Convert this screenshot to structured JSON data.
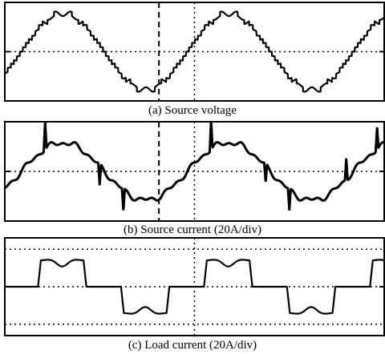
{
  "captions": {
    "a": "(a) Source voltage",
    "b": "(b) Source current (20A/div)",
    "c": "(c) Load current (20A/div)"
  },
  "colors": {
    "trace": "#000000",
    "grid": "#000000",
    "frame": "#000000"
  },
  "chart_data": [
    {
      "type": "line",
      "title": "(a) Source voltage",
      "xlim": [
        0,
        1.6
      ],
      "ylim": [
        -1.3,
        1.3
      ],
      "grid_lines_y": [
        0
      ],
      "grid_lines_x": [
        0.8
      ],
      "dashed_marker_x": 0.65,
      "waveform": {
        "fundamental_amplitude": 1.0,
        "fundamental_cycles_per_unit": 1.4286,
        "phase_start": 0.07,
        "ripple": "stepped multilevel staircase with small notches near the peaks"
      },
      "series": [
        {
          "values": []
        }
      ]
    },
    {
      "type": "line",
      "title": "(b) Source current (20A/div)",
      "xlim": [
        0,
        1.6
      ],
      "ylim": [
        -1.3,
        1.3
      ],
      "grid_lines_y": [
        0
      ],
      "grid_lines_x": [
        0.8
      ],
      "dashed_marker_x": 0.65,
      "waveform": {
        "fundamental_amplitude": 0.75,
        "fundamental_cycles_per_unit": 1.4286,
        "phase_start": 0.07,
        "spikes": [
          {
            "x": 0.17,
            "height": 0.75
          },
          {
            "x": 0.4,
            "height": -0.55
          },
          {
            "x": 0.5,
            "height": -0.6
          },
          {
            "x": 0.87,
            "height": 0.8
          },
          {
            "x": 1.1,
            "height": -0.5
          },
          {
            "x": 1.2,
            "height": -0.55
          },
          {
            "x": 1.44,
            "height": 0.55
          },
          {
            "x": 1.57,
            "height": 0.6
          }
        ]
      },
      "series": [
        {
          "values": []
        }
      ]
    },
    {
      "type": "line",
      "title": "(c) Load current (20A/div)",
      "xlim": [
        0,
        1.6
      ],
      "ylim": [
        -1.3,
        1.3
      ],
      "grid_lines_y": [
        1,
        0,
        -1
      ],
      "grid_lines_x": [
        0.8
      ],
      "waveform": {
        "shape": "six-pulse rectifier quasi-square wave with center dip",
        "high_level": 0.7,
        "dip_level": 0.5,
        "period": 0.7,
        "rising_edge_start": 0.14
      },
      "series": [
        {
          "values": []
        }
      ]
    }
  ]
}
